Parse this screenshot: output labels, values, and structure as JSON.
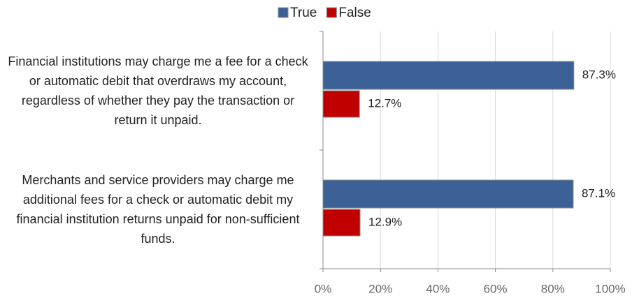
{
  "chart_data": {
    "type": "bar",
    "orientation": "horizontal",
    "categories": [
      "Financial institutions may charge me a fee for a check or automatic debit that overdraws my account, regardless of whether they pay the transaction or return it unpaid.",
      "Merchants and service providers may charge me additional fees for a check or automatic debit my financial institution returns unpaid for non-sufficient funds."
    ],
    "series": [
      {
        "name": "True",
        "color": "#3b6196",
        "values": [
          87.3,
          87.1
        ],
        "value_labels": [
          "87.3%",
          "87.1%"
        ]
      },
      {
        "name": "False",
        "color": "#c00000",
        "values": [
          12.7,
          12.9
        ],
        "value_labels": [
          "12.7%",
          "12.9%"
        ]
      }
    ],
    "xlim": [
      0,
      100
    ],
    "xticks": [
      {
        "value": 0,
        "label": "0%"
      },
      {
        "value": 20,
        "label": "20%"
      },
      {
        "value": 40,
        "label": "40%"
      },
      {
        "value": 60,
        "label": "60%"
      },
      {
        "value": 80,
        "label": "80%"
      },
      {
        "value": 100,
        "label": "100%"
      }
    ],
    "grid": true,
    "legend": "top"
  }
}
